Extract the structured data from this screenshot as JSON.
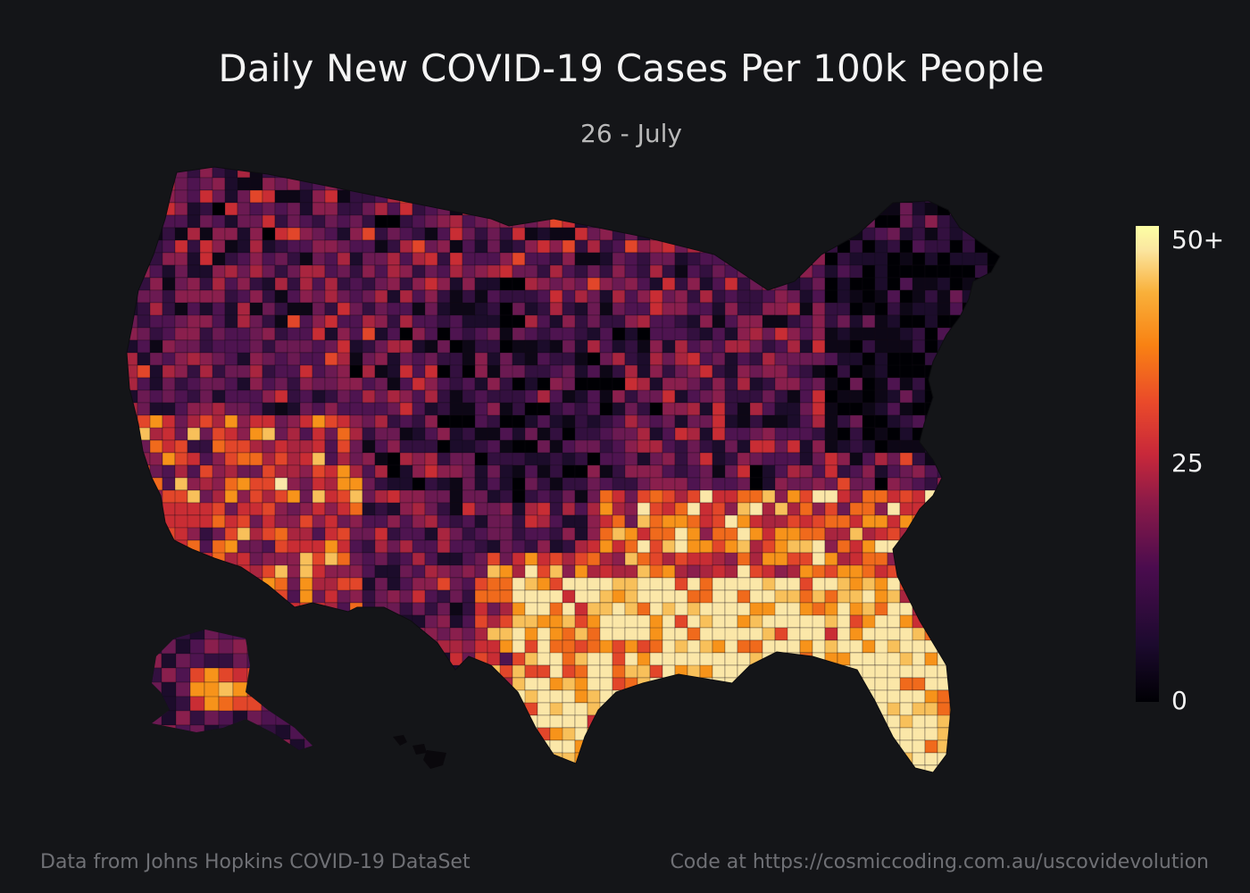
{
  "title": "Daily New COVID-19 Cases Per 100k People",
  "subtitle": "26 - July",
  "colorbar": {
    "labels": [
      "50+",
      "25",
      "0"
    ],
    "min": 0,
    "max": 50,
    "colorscale": "inferno"
  },
  "footer": {
    "source": "Data from Johns Hopkins COVID-19 DataSet",
    "code": "Code at https://cosmiccoding.com.au/uscovidevolution"
  },
  "colors": {
    "background": "#141518",
    "low": "#000004",
    "mid": "#c8283a",
    "high": "#fcffa4"
  }
}
